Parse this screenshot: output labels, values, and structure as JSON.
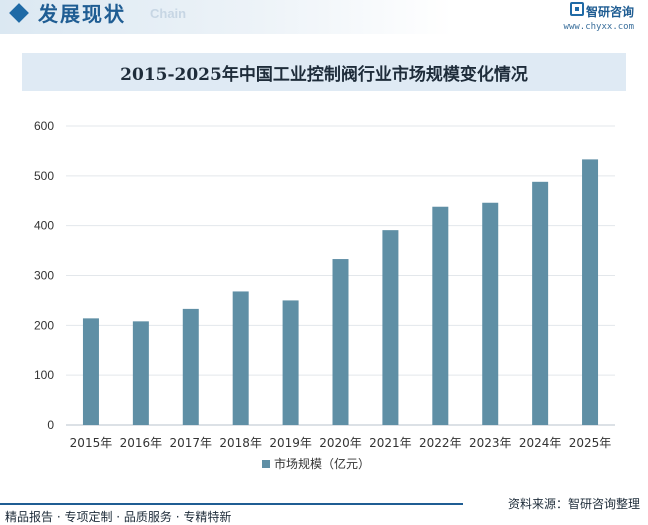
{
  "header": {
    "section_title": "发展现状",
    "section_subtitle": "Chain",
    "brand_name": "智研咨询",
    "brand_url": "www.chyxx.com"
  },
  "footer": {
    "left_text": "精品报告 · 专项定制 · 品质服务 · 专精特新",
    "source": "资料来源：智研咨询整理"
  },
  "colors": {
    "bar": "#5f8fa5",
    "accent": "#1f5d93"
  },
  "chart_data": {
    "type": "bar",
    "title": "2015-2025年中国工业控制阀行业市场规模变化情况",
    "categories": [
      "2015年",
      "2016年",
      "2017年",
      "2018年",
      "2019年",
      "2020年",
      "2021年",
      "2022年",
      "2023年",
      "2024年",
      "2025年"
    ],
    "series": [
      {
        "name": "市场规模（亿元）",
        "values": [
          214,
          208,
          233,
          268,
          250,
          333,
          391,
          438,
          446,
          488,
          533
        ]
      }
    ],
    "ylim": [
      0,
      600
    ],
    "yticks": [
      0,
      100,
      200,
      300,
      400,
      500,
      600
    ],
    "grid": true,
    "legend_position": "bottom"
  }
}
